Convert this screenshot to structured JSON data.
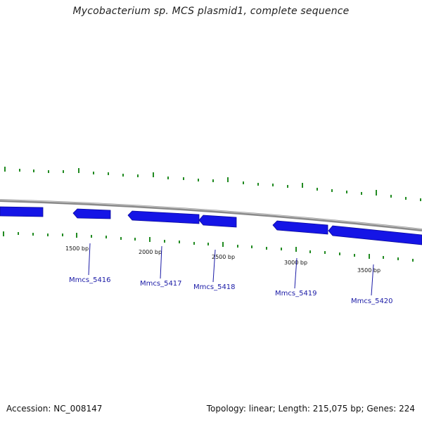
{
  "title": "Mycobacterium sp. MCS plasmid1, complete sequence",
  "accession": "Accession: NC_008147",
  "summary": "Topology: linear; Length: 215,075 bp; Genes: 224",
  "colors": {
    "backbone": "#8a8a8a",
    "gene": "#1515e6",
    "gene_edge": "#0a0a9a",
    "tick": "#228b22",
    "label": "#1a1aa6"
  },
  "ticks": [
    {
      "label": "1500 bp"
    },
    {
      "label": "2000 bp"
    },
    {
      "label": "2500 bp"
    },
    {
      "label": "3000 bp"
    },
    {
      "label": "3500 bp"
    }
  ],
  "genes": [
    {
      "name": ""
    },
    {
      "name": "Mmcs_5416"
    },
    {
      "name": "Mmcs_5417"
    },
    {
      "name": "Mmcs_5418"
    },
    {
      "name": "Mmcs_5419"
    },
    {
      "name": "Mmcs_5420"
    }
  ]
}
